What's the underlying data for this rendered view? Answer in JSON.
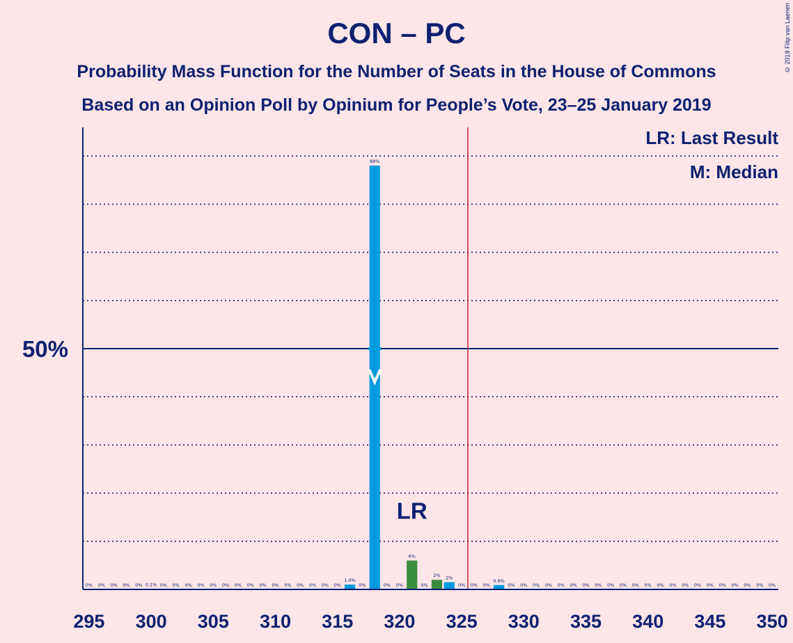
{
  "chart_data": {
    "type": "bar",
    "title": "CON – PC",
    "subtitle_1": "Probability Mass Function for the Number of Seats in the House of Commons",
    "subtitle_2": "Based on an Opinion Poll by Opinium for People’s Vote, 23–25 January 2019",
    "copyright": "© 2019 Filip van Laenen",
    "legend": {
      "last_result": "LR: Last Result",
      "median": "M: Median"
    },
    "y_tick_label": "50%",
    "y_tick_value": 50,
    "ylim": [
      0,
      100
    ],
    "xlim": [
      295,
      351
    ],
    "x_ticks": [
      295,
      300,
      305,
      310,
      315,
      320,
      325,
      330,
      335,
      340,
      345,
      350
    ],
    "grid": true,
    "majority_line": 326,
    "median": 318,
    "last_result": 321,
    "lr_label": "LR",
    "colors": {
      "background": "#fde5e8",
      "bar_blue": "#009ade",
      "bar_green": "#3a8d3c",
      "axis": "#0e2170",
      "majority_line": "#c8102e"
    },
    "bars": [
      {
        "x": 295,
        "value": 0,
        "label": "0%"
      },
      {
        "x": 296,
        "value": 0,
        "label": "0%"
      },
      {
        "x": 297,
        "value": 0,
        "label": "0%"
      },
      {
        "x": 298,
        "value": 0,
        "label": "0%"
      },
      {
        "x": 299,
        "value": 0,
        "label": "0%"
      },
      {
        "x": 300,
        "value": 0.1,
        "label": "0.1%"
      },
      {
        "x": 301,
        "value": 0,
        "label": "0%"
      },
      {
        "x": 302,
        "value": 0,
        "label": "0%"
      },
      {
        "x": 303,
        "value": 0,
        "label": "0%"
      },
      {
        "x": 304,
        "value": 0,
        "label": "0%"
      },
      {
        "x": 305,
        "value": 0,
        "label": "0%"
      },
      {
        "x": 306,
        "value": 0,
        "label": "0%"
      },
      {
        "x": 307,
        "value": 0,
        "label": "0%"
      },
      {
        "x": 308,
        "value": 0,
        "label": "0%"
      },
      {
        "x": 309,
        "value": 0,
        "label": "0%"
      },
      {
        "x": 310,
        "value": 0,
        "label": "0%"
      },
      {
        "x": 311,
        "value": 0,
        "label": "0%"
      },
      {
        "x": 312,
        "value": 0,
        "label": "0%"
      },
      {
        "x": 313,
        "value": 0,
        "label": "0%"
      },
      {
        "x": 314,
        "value": 0,
        "label": "0%"
      },
      {
        "x": 315,
        "value": 0,
        "label": "0%"
      },
      {
        "x": 316,
        "value": 1.0,
        "label": "1.0%"
      },
      {
        "x": 317,
        "value": 0,
        "label": "0%"
      },
      {
        "x": 318,
        "value": 88,
        "label": "88%"
      },
      {
        "x": 319,
        "value": 0,
        "label": "0%"
      },
      {
        "x": 320,
        "value": 0,
        "label": "0%"
      },
      {
        "x": 321,
        "value": 6,
        "label": "6%",
        "color": "green"
      },
      {
        "x": 322,
        "value": 0,
        "label": "0%"
      },
      {
        "x": 323,
        "value": 2,
        "label": "2%",
        "color": "green"
      },
      {
        "x": 324,
        "value": 1.5,
        "label": "2%"
      },
      {
        "x": 325,
        "value": 0,
        "label": "0%"
      },
      {
        "x": 326,
        "value": 0,
        "label": "0%"
      },
      {
        "x": 327,
        "value": 0,
        "label": "0%"
      },
      {
        "x": 328,
        "value": 0.9,
        "label": "0.9%"
      },
      {
        "x": 329,
        "value": 0,
        "label": "0%"
      },
      {
        "x": 330,
        "value": 0,
        "label": "0%"
      },
      {
        "x": 331,
        "value": 0,
        "label": "0%"
      },
      {
        "x": 332,
        "value": 0,
        "label": "0%"
      },
      {
        "x": 333,
        "value": 0,
        "label": "0%"
      },
      {
        "x": 334,
        "value": 0,
        "label": "0%"
      },
      {
        "x": 335,
        "value": 0,
        "label": "0%"
      },
      {
        "x": 336,
        "value": 0,
        "label": "0%"
      },
      {
        "x": 337,
        "value": 0,
        "label": "0%"
      },
      {
        "x": 338,
        "value": 0,
        "label": "0%"
      },
      {
        "x": 339,
        "value": 0,
        "label": "0%"
      },
      {
        "x": 340,
        "value": 0,
        "label": "0%"
      },
      {
        "x": 341,
        "value": 0,
        "label": "0%"
      },
      {
        "x": 342,
        "value": 0,
        "label": "0%"
      },
      {
        "x": 343,
        "value": 0,
        "label": "0%"
      },
      {
        "x": 344,
        "value": 0,
        "label": "0%"
      },
      {
        "x": 345,
        "value": 0,
        "label": "0%"
      },
      {
        "x": 346,
        "value": 0,
        "label": "0%"
      },
      {
        "x": 347,
        "value": 0,
        "label": "0%"
      },
      {
        "x": 348,
        "value": 0,
        "label": "0%"
      },
      {
        "x": 349,
        "value": 0,
        "label": "0%"
      },
      {
        "x": 350,
        "value": 0,
        "label": "0%"
      }
    ]
  }
}
